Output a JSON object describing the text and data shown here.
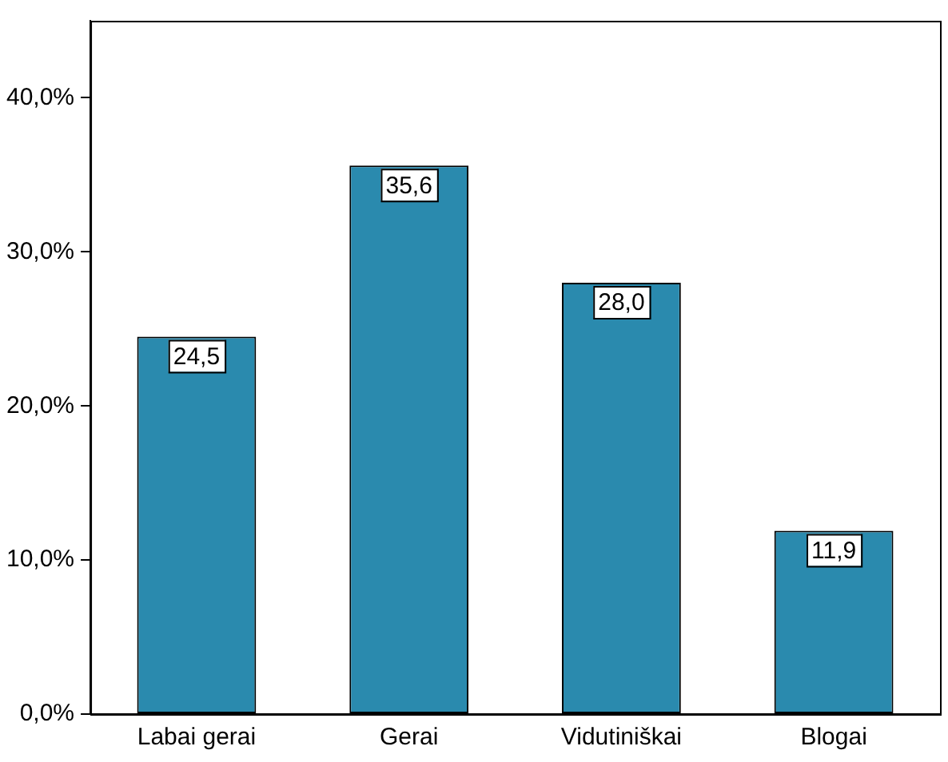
{
  "chart_data": {
    "type": "bar",
    "categories": [
      "Labai gerai",
      "Gerai",
      "Vidutiniškai",
      "Blogai"
    ],
    "values": [
      24.5,
      35.6,
      28.0,
      11.9
    ],
    "value_labels": [
      "24,5",
      "35,6",
      "28,0",
      "11,9"
    ],
    "color": "#2a8aae",
    "ylim": [
      0,
      45
    ],
    "yticks": [
      {
        "value": 0,
        "label": "0,0%"
      },
      {
        "value": 10,
        "label": "10,0%"
      },
      {
        "value": 20,
        "label": "20,0%"
      },
      {
        "value": 30,
        "label": "30,0%"
      },
      {
        "value": 40,
        "label": "40,0%"
      }
    ],
    "grid": false,
    "legend": false
  }
}
